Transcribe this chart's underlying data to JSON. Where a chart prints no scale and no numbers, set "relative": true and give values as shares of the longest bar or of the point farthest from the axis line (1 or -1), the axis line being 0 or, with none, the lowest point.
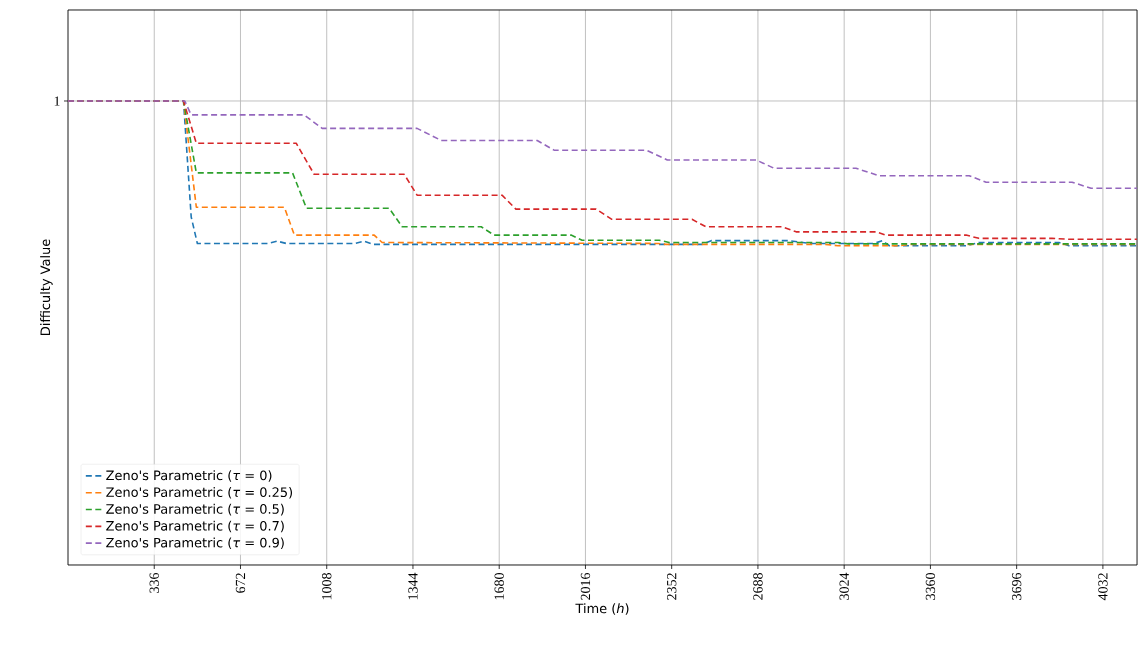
{
  "chart_data": {
    "type": "line",
    "relative": true,
    "xlabel": "Time (*h*)",
    "ylabel": "Difficulty Value",
    "xlim": [
      0,
      4165
    ],
    "xticks": [
      336,
      672,
      1008,
      1344,
      1680,
      2016,
      2352,
      2688,
      3024,
      3360,
      3696,
      4032
    ],
    "grid": true,
    "legend": "bottom left",
    "line_style": "dashed",
    "annotations": [
      "1"
    ],
    "series": [
      {
        "name": "Zeno's Parametric (*τ* = 0)",
        "color": "#1f77b4",
        "x": [
          0,
          450,
          480,
          504,
          780,
          815,
          850,
          1120,
          1154,
          1190,
          2471,
          2506,
          2810,
          2889,
          3140,
          3173,
          3200,
          3499,
          3549,
          3861,
          3900,
          4165
        ],
        "values": [
          1,
          1,
          0.75,
          0.693,
          0.693,
          0.698,
          0.693,
          0.693,
          0.698,
          0.691,
          0.691,
          0.699,
          0.699,
          0.693,
          0.693,
          0.699,
          0.688,
          0.688,
          0.695,
          0.695,
          0.688,
          0.688
        ]
      },
      {
        "name": "Zeno's Parametric (*τ* = 0.25)",
        "color": "#ff7f0e",
        "x": [
          0,
          450,
          500,
          843,
          882,
          1193,
          1224,
          2300,
          2330,
          2950,
          3000,
          3240,
          3280,
          4165
        ],
        "values": [
          1,
          1,
          0.771,
          0.771,
          0.711,
          0.711,
          0.695,
          0.693,
          0.691,
          0.691,
          0.688,
          0.688,
          0.691,
          0.691
        ]
      },
      {
        "name": "Zeno's Parametric (*τ* = 0.5)",
        "color": "#2ca02c",
        "x": [
          0,
          450,
          500,
          875,
          929,
          1251,
          1302,
          1610,
          1660,
          1960,
          2003,
          2303,
          2342,
          3000,
          3040,
          4165
        ],
        "values": [
          1,
          1,
          0.845,
          0.845,
          0.769,
          0.769,
          0.729,
          0.729,
          0.711,
          0.711,
          0.7,
          0.7,
          0.695,
          0.695,
          0.692,
          0.692
        ]
      },
      {
        "name": "Zeno's Parametric (*τ* = 0.7)",
        "color": "#d62728",
        "x": [
          0,
          450,
          500,
          889,
          959,
          1310,
          1360,
          1691,
          1745,
          2057,
          2119,
          2431,
          2485,
          2781,
          2837,
          3148,
          3187,
          3499,
          3549,
          3834,
          3900,
          4165
        ],
        "values": [
          1,
          1,
          0.909,
          0.909,
          0.842,
          0.842,
          0.797,
          0.797,
          0.767,
          0.767,
          0.745,
          0.745,
          0.729,
          0.729,
          0.718,
          0.718,
          0.711,
          0.711,
          0.704,
          0.704,
          0.702,
          0.702
        ]
      },
      {
        "name": "Zeno's Parametric (*τ* = 0.9)",
        "color": "#9467bd",
        "x": [
          0,
          455,
          480,
          920,
          990,
          1360,
          1454,
          1828,
          1894,
          2253,
          2335,
          2681,
          2751,
          3070,
          3160,
          3511,
          3577,
          3912,
          3986,
          4165
        ],
        "values": [
          1,
          1,
          0.97,
          0.97,
          0.941,
          0.941,
          0.915,
          0.915,
          0.894,
          0.894,
          0.873,
          0.873,
          0.855,
          0.855,
          0.839,
          0.839,
          0.825,
          0.825,
          0.812,
          0.812
        ]
      }
    ]
  }
}
